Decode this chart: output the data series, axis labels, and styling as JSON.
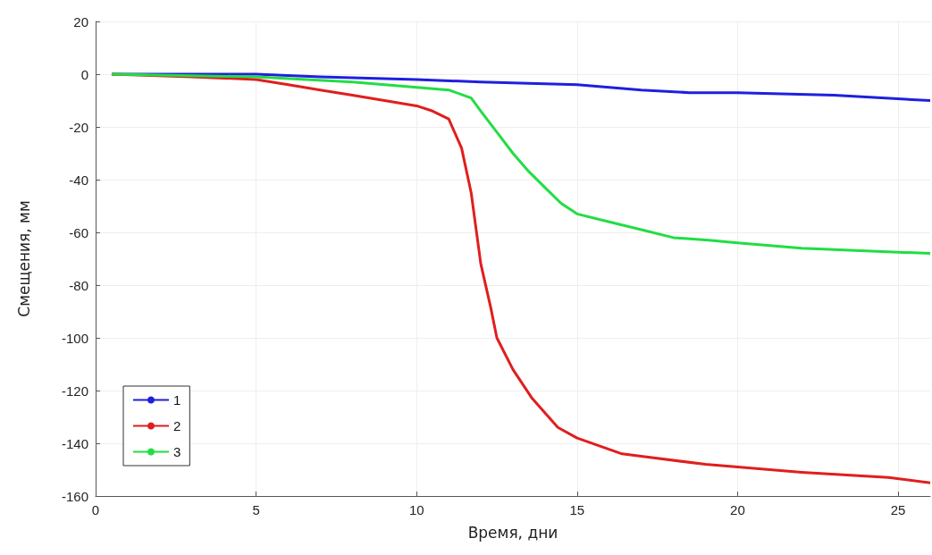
{
  "chart_data": {
    "type": "line",
    "xlabel": "Время, дни",
    "ylabel": "Смещения, мм",
    "xlim": [
      0,
      26
    ],
    "ylim": [
      -160,
      20
    ],
    "xticks": [
      0,
      5,
      10,
      15,
      20,
      25
    ],
    "yticks": [
      -160,
      -140,
      -120,
      -100,
      -80,
      -60,
      -40,
      -20,
      0,
      20
    ],
    "grid": true,
    "legend": "bottom left",
    "line_style": "solid",
    "series": [
      {
        "name": "1",
        "color": "#1f1fe0",
        "x": [
          0.5,
          2,
          5,
          7,
          10,
          12,
          15,
          17,
          18.5,
          20,
          23,
          26
        ],
        "values": [
          0,
          0,
          0,
          -1,
          -2,
          -3,
          -4,
          -6,
          -7,
          -7,
          -8,
          -10
        ]
      },
      {
        "name": "2",
        "color": "#e01e1e",
        "x": [
          0.5,
          3,
          5,
          6,
          7,
          8,
          9,
          10,
          10.5,
          11,
          11.4,
          11.7,
          12,
          12.3,
          12.5,
          13,
          13.6,
          14.4,
          15,
          16.4,
          19,
          22,
          24.7,
          26
        ],
        "values": [
          0,
          -1,
          -2,
          -4,
          -6,
          -8,
          -10,
          -12,
          -14,
          -17,
          -28,
          -45,
          -72,
          -88,
          -100,
          -112,
          -123,
          -134,
          -138,
          -144,
          -148,
          -151,
          -153,
          -155
        ]
      },
      {
        "name": "3",
        "color": "#22dd44",
        "x": [
          0.5,
          5,
          8,
          10,
          11,
          11.7,
          12,
          12.5,
          13,
          13.5,
          14,
          14.5,
          15,
          16,
          17,
          18,
          19.1,
          20,
          22,
          24,
          26
        ],
        "values": [
          0,
          -1,
          -3,
          -5,
          -6,
          -9,
          -14,
          -22,
          -30,
          -37,
          -43,
          -49,
          -53,
          -56,
          -59,
          -62,
          -63,
          -64,
          -66,
          -67,
          -68
        ]
      }
    ]
  }
}
